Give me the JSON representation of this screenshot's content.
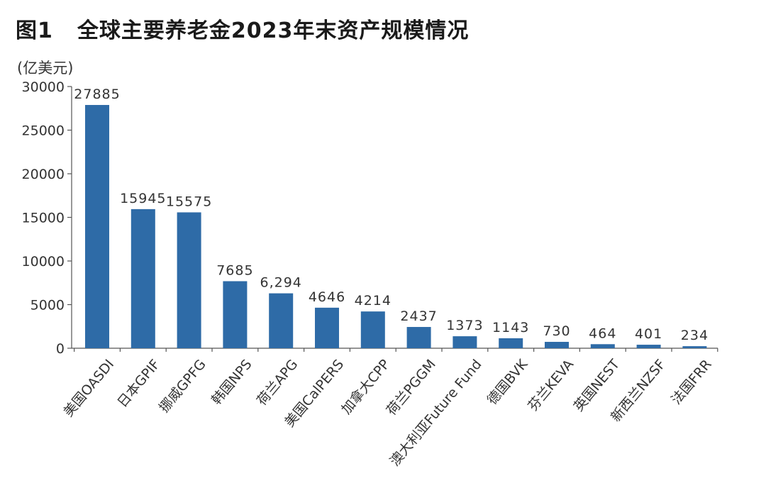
{
  "figure": {
    "number": "图1",
    "title": "全球主要养老金2023年末资产规模情况",
    "unit": "(亿美元)"
  },
  "colors": {
    "bar": "#2e6ba7",
    "axis": "#555555",
    "text": "#333333"
  },
  "chart_data": {
    "type": "bar",
    "title": "全球主要养老金2023年末资产规模情况",
    "ylabel": "(亿美元)",
    "xlabel": "",
    "ylim": [
      0,
      30000
    ],
    "yticks": [
      0,
      5000,
      10000,
      15000,
      20000,
      25000,
      30000
    ],
    "ytick_labels": [
      "0",
      "5000",
      "10000",
      "15000",
      "20000",
      "25000",
      "30000"
    ],
    "grid": false,
    "categories": [
      "美国OASDI",
      "日本GPIF",
      "挪威GPFG",
      "韩国NPS",
      "荷兰APG",
      "美国CalPERS",
      "加拿大CPP",
      "荷兰PGGM",
      "澳大利亚Future Fund",
      "德国BVK",
      "芬兰KEVA",
      "英国NEST",
      "新西兰NZSF",
      "法国FRR"
    ],
    "values": [
      27885,
      15945,
      15575,
      7685,
      6294,
      4646,
      4214,
      2437,
      1373,
      1143,
      730,
      464,
      401,
      234
    ],
    "data_labels": [
      "27885",
      "15945",
      "15575",
      "7685",
      "6,294",
      "4646",
      "4214",
      "2437",
      "1373",
      "1143",
      "730",
      "464",
      "401",
      "234"
    ]
  }
}
